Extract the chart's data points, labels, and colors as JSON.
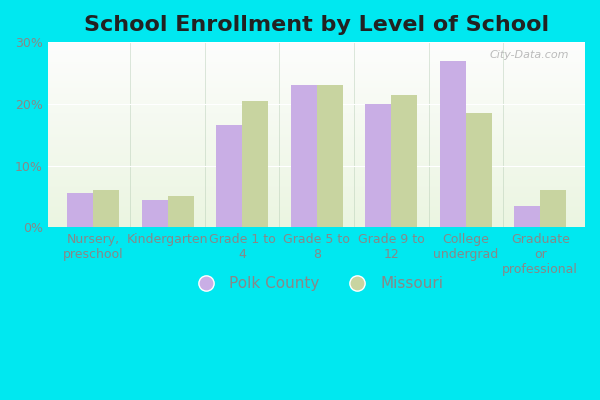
{
  "title": "School Enrollment by Level of School",
  "categories": [
    "Nursery,\npreschool",
    "Kindergarten",
    "Grade 1 to\n4",
    "Grade 5 to\n8",
    "Grade 9 to\n12",
    "College\nundergrad",
    "Graduate\nor\nprofessional"
  ],
  "polk_county": [
    5.5,
    4.5,
    16.5,
    23.0,
    20.0,
    27.0,
    3.5
  ],
  "missouri": [
    6.0,
    5.0,
    20.5,
    23.0,
    21.5,
    18.5,
    6.0
  ],
  "polk_color": "#c9aee5",
  "missouri_color": "#c8d4a0",
  "background_outer": "#00e8f0",
  "ylim": [
    0,
    30
  ],
  "yticks": [
    0,
    10,
    20,
    30
  ],
  "ytick_labels": [
    "0%",
    "10%",
    "20%",
    "30%"
  ],
  "legend_polk": "Polk County",
  "legend_missouri": "Missouri",
  "bar_width": 0.35,
  "title_fontsize": 16,
  "tick_fontsize": 9,
  "legend_fontsize": 11,
  "title_color": "#222222",
  "tick_color": "#888888"
}
